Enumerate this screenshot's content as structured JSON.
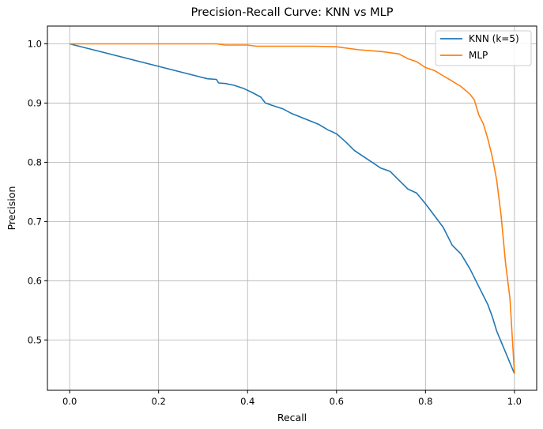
{
  "chart_data": {
    "type": "line",
    "title": "Precision-Recall Curve: KNN vs MLP",
    "xlabel": "Recall",
    "ylabel": "Precision",
    "xlim": [
      -0.05,
      1.05
    ],
    "ylim": [
      0.415,
      1.03
    ],
    "xticks": [
      0.0,
      0.2,
      0.4,
      0.6,
      0.8,
      1.0
    ],
    "xtick_labels": [
      "0.0",
      "0.2",
      "0.4",
      "0.6",
      "0.8",
      "1.0"
    ],
    "yticks": [
      0.5,
      0.6,
      0.7,
      0.8,
      0.9,
      1.0
    ],
    "ytick_labels": [
      "0.5",
      "0.6",
      "0.7",
      "0.8",
      "0.9",
      "1.0"
    ],
    "grid": true,
    "legend": "top-right",
    "series": [
      {
        "name": "KNN (k=5)",
        "color": "#1f77b4",
        "points": [
          [
            0.0,
            1.0
          ],
          [
            0.31,
            0.941
          ],
          [
            0.33,
            0.94
          ],
          [
            0.335,
            0.934
          ],
          [
            0.35,
            0.933
          ],
          [
            0.37,
            0.93
          ],
          [
            0.39,
            0.925
          ],
          [
            0.41,
            0.918
          ],
          [
            0.43,
            0.91
          ],
          [
            0.44,
            0.9
          ],
          [
            0.46,
            0.895
          ],
          [
            0.48,
            0.89
          ],
          [
            0.5,
            0.882
          ],
          [
            0.52,
            0.876
          ],
          [
            0.54,
            0.87
          ],
          [
            0.56,
            0.864
          ],
          [
            0.58,
            0.855
          ],
          [
            0.6,
            0.848
          ],
          [
            0.62,
            0.835
          ],
          [
            0.64,
            0.82
          ],
          [
            0.66,
            0.81
          ],
          [
            0.68,
            0.8
          ],
          [
            0.7,
            0.79
          ],
          [
            0.72,
            0.785
          ],
          [
            0.74,
            0.77
          ],
          [
            0.76,
            0.755
          ],
          [
            0.78,
            0.748
          ],
          [
            0.8,
            0.73
          ],
          [
            0.82,
            0.71
          ],
          [
            0.84,
            0.69
          ],
          [
            0.86,
            0.66
          ],
          [
            0.88,
            0.645
          ],
          [
            0.9,
            0.62
          ],
          [
            0.92,
            0.59
          ],
          [
            0.94,
            0.56
          ],
          [
            0.95,
            0.54
          ],
          [
            0.96,
            0.515
          ],
          [
            1.0,
            0.443
          ]
        ]
      },
      {
        "name": "MLP",
        "color": "#ff7f0e",
        "points": [
          [
            0.0,
            1.0
          ],
          [
            0.33,
            1.0
          ],
          [
            0.35,
            0.998
          ],
          [
            0.4,
            0.998
          ],
          [
            0.42,
            0.996
          ],
          [
            0.5,
            0.996
          ],
          [
            0.55,
            0.996
          ],
          [
            0.6,
            0.995
          ],
          [
            0.65,
            0.99
          ],
          [
            0.7,
            0.987
          ],
          [
            0.74,
            0.983
          ],
          [
            0.76,
            0.975
          ],
          [
            0.78,
            0.97
          ],
          [
            0.8,
            0.96
          ],
          [
            0.82,
            0.955
          ],
          [
            0.84,
            0.946
          ],
          [
            0.86,
            0.937
          ],
          [
            0.88,
            0.928
          ],
          [
            0.9,
            0.915
          ],
          [
            0.91,
            0.905
          ],
          [
            0.92,
            0.88
          ],
          [
            0.93,
            0.865
          ],
          [
            0.94,
            0.84
          ],
          [
            0.95,
            0.81
          ],
          [
            0.96,
            0.77
          ],
          [
            0.97,
            0.71
          ],
          [
            0.98,
            0.63
          ],
          [
            0.99,
            0.57
          ],
          [
            1.0,
            0.443
          ]
        ]
      }
    ]
  }
}
